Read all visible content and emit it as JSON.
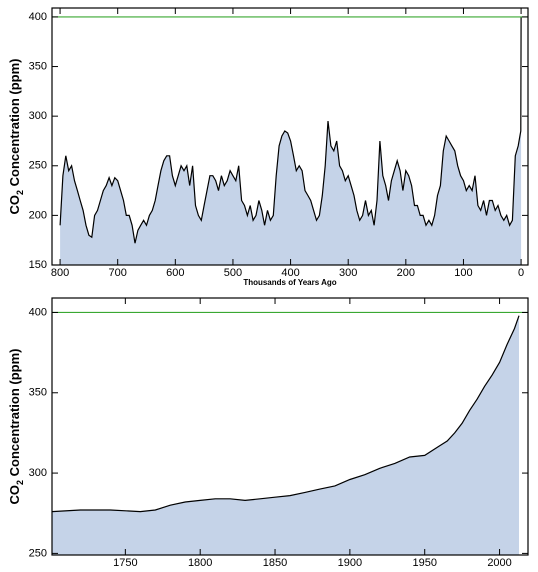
{
  "chart_data": [
    {
      "type": "area",
      "ylabel_parts": [
        "CO",
        "2",
        " Concentration (ppm)"
      ],
      "xlabel": "Thousands of Years Ago",
      "xlim": [
        814,
        -12
      ],
      "ylim": [
        150,
        409
      ],
      "xticks": [
        800,
        700,
        600,
        500,
        400,
        300,
        200,
        100,
        0
      ],
      "yticks": [
        150,
        200,
        250,
        300,
        350,
        400
      ],
      "fill_color": "#c5d3e8",
      "line_color": "#000000",
      "reference_line": {
        "value": 400,
        "color": "#3aa832"
      },
      "x": [
        800,
        795,
        790,
        785,
        780,
        775,
        770,
        765,
        760,
        755,
        750,
        745,
        740,
        735,
        730,
        725,
        720,
        715,
        710,
        705,
        700,
        695,
        690,
        685,
        680,
        675,
        670,
        665,
        660,
        655,
        650,
        645,
        640,
        635,
        630,
        625,
        620,
        615,
        610,
        605,
        600,
        595,
        590,
        585,
        580,
        575,
        570,
        565,
        560,
        555,
        550,
        545,
        540,
        535,
        530,
        525,
        520,
        515,
        510,
        505,
        500,
        495,
        490,
        485,
        480,
        475,
        470,
        465,
        460,
        455,
        450,
        445,
        440,
        435,
        430,
        425,
        420,
        415,
        410,
        405,
        400,
        395,
        390,
        385,
        380,
        375,
        370,
        365,
        360,
        355,
        350,
        345,
        340,
        335,
        330,
        325,
        320,
        315,
        310,
        305,
        300,
        295,
        290,
        285,
        280,
        275,
        270,
        265,
        260,
        255,
        250,
        245,
        240,
        235,
        230,
        225,
        220,
        215,
        210,
        205,
        200,
        195,
        190,
        185,
        180,
        175,
        170,
        165,
        160,
        155,
        150,
        145,
        140,
        135,
        130,
        125,
        120,
        115,
        110,
        105,
        100,
        95,
        90,
        85,
        80,
        75,
        70,
        65,
        60,
        55,
        50,
        45,
        40,
        35,
        30,
        25,
        20,
        15,
        10,
        5,
        2,
        0.5,
        0
      ],
      "values": [
        190,
        240,
        260,
        245,
        250,
        235,
        225,
        215,
        205,
        190,
        180,
        178,
        200,
        205,
        215,
        225,
        230,
        238,
        230,
        238,
        235,
        225,
        215,
        200,
        200,
        190,
        172,
        185,
        190,
        195,
        190,
        200,
        205,
        215,
        230,
        245,
        255,
        260,
        260,
        240,
        230,
        240,
        250,
        245,
        250,
        230,
        250,
        210,
        200,
        195,
        210,
        225,
        240,
        240,
        235,
        225,
        240,
        230,
        235,
        245,
        240,
        235,
        250,
        215,
        210,
        200,
        210,
        195,
        200,
        215,
        205,
        190,
        205,
        195,
        200,
        240,
        270,
        280,
        285,
        283,
        275,
        260,
        245,
        250,
        245,
        225,
        220,
        215,
        205,
        195,
        200,
        220,
        250,
        295,
        270,
        265,
        275,
        250,
        245,
        235,
        240,
        230,
        220,
        205,
        195,
        200,
        215,
        200,
        205,
        190,
        215,
        275,
        240,
        230,
        215,
        235,
        245,
        255,
        245,
        225,
        245,
        240,
        230,
        210,
        210,
        200,
        200,
        190,
        195,
        190,
        200,
        220,
        230,
        265,
        280,
        275,
        270,
        265,
        250,
        240,
        235,
        225,
        230,
        225,
        240,
        210,
        205,
        215,
        200,
        215,
        215,
        205,
        210,
        200,
        195,
        200,
        190,
        195,
        260,
        270,
        280,
        285,
        400
      ]
    },
    {
      "type": "area",
      "ylabel_parts": [
        "CO",
        "2",
        " Concentration (ppm)"
      ],
      "xlim": [
        1701,
        2019
      ],
      "ylim": [
        249,
        409
      ],
      "xticks": [
        1750,
        1800,
        1850,
        1900,
        1950,
        2000
      ],
      "yticks": [
        250,
        300,
        350,
        400
      ],
      "fill_color": "#c5d3e8",
      "line_color": "#000000",
      "reference_line": {
        "value": 400,
        "color": "#3aa832"
      },
      "x": [
        1701,
        1720,
        1740,
        1760,
        1770,
        1780,
        1790,
        1800,
        1810,
        1820,
        1830,
        1840,
        1850,
        1860,
        1870,
        1880,
        1890,
        1900,
        1910,
        1920,
        1930,
        1940,
        1950,
        1960,
        1965,
        1970,
        1975,
        1980,
        1985,
        1990,
        1995,
        2000,
        2005,
        2010,
        2013
      ],
      "values": [
        276,
        277,
        277,
        276,
        277,
        280,
        282,
        283,
        284,
        284,
        283,
        284,
        285,
        286,
        288,
        290,
        292,
        296,
        299,
        303,
        306,
        310,
        311,
        317,
        320,
        325,
        331,
        339,
        346,
        354,
        361,
        369,
        380,
        390,
        398
      ]
    }
  ]
}
